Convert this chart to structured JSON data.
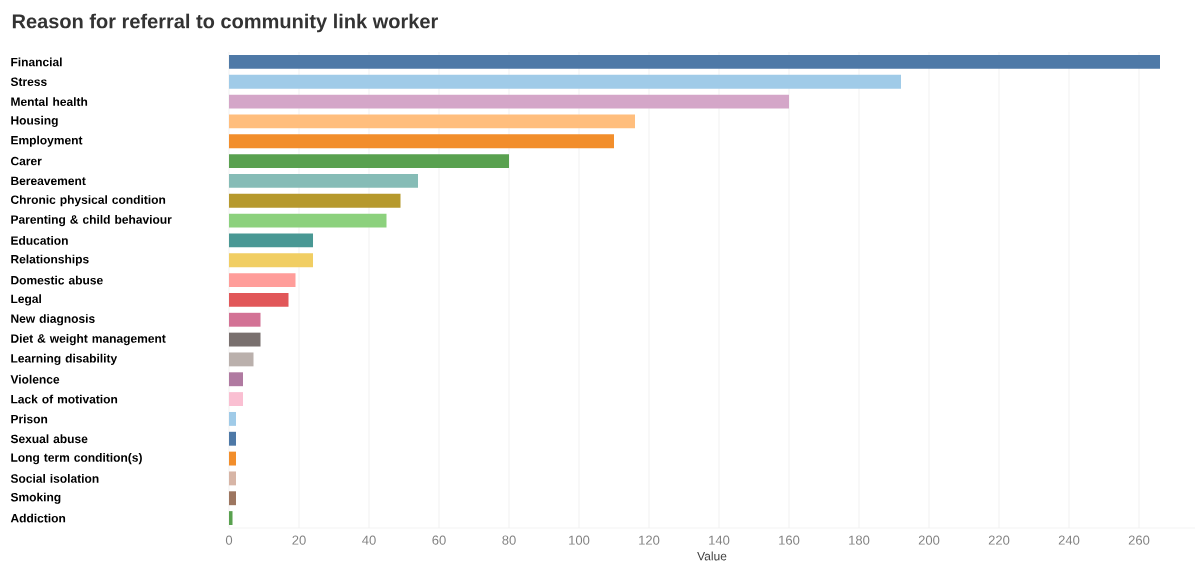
{
  "chart_data": {
    "type": "bar",
    "orientation": "horizontal",
    "title": "Reason for referral to community link worker",
    "xlabel": "Value",
    "categories": [
      "Financial",
      "Stress",
      "Mental health",
      "Housing",
      "Employment",
      "Carer",
      "Bereavement",
      "Chronic physical condition",
      "Parenting & child behaviour",
      "Education",
      "Relationships",
      "Domestic abuse",
      "Legal",
      "New diagnosis",
      "Diet & weight management",
      "Learning disability",
      "Violence",
      "Lack of motivation",
      "Prison",
      "Sexual abuse",
      "Long term condition(s)",
      "Social isolation",
      "Smoking",
      "Addiction"
    ],
    "values": [
      266,
      192,
      160,
      116,
      110,
      80,
      54,
      49,
      45,
      24,
      24,
      19,
      17,
      9,
      9,
      7,
      4,
      4,
      2,
      2,
      2,
      2,
      2,
      1
    ],
    "colors": [
      "#4e79a7",
      "#a0cbe8",
      "#d4a6c8",
      "#ffbe7d",
      "#f28e2b",
      "#59a14f",
      "#86bcb6",
      "#b6992d",
      "#8cd17d",
      "#499894",
      "#f1ce63",
      "#ff9d9a",
      "#e15759",
      "#d37295",
      "#79706e",
      "#bab0ac",
      "#b07aa1",
      "#fabfd2",
      "#a0cbe8",
      "#4e79a7",
      "#f28e2b",
      "#d7b5a6",
      "#9d7660",
      "#59a14f"
    ],
    "xlim": [
      0,
      276
    ],
    "xticks": [
      0,
      20,
      40,
      60,
      80,
      100,
      120,
      140,
      160,
      180,
      200,
      220,
      240,
      260
    ],
    "grid": "x"
  }
}
